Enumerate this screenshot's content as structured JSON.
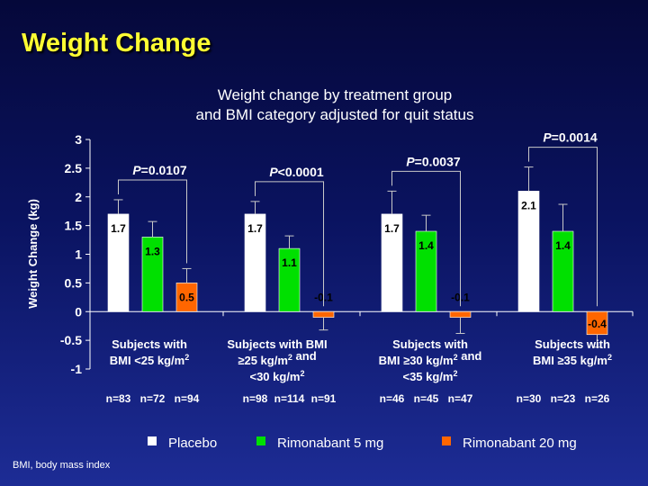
{
  "slide": {
    "title": "Weight Change",
    "footnote": "BMI, body mass index",
    "colors": {
      "background_top": "#05083a",
      "background_bottom": "#1d2c95",
      "title": "#ffff33",
      "text": "#ffffff"
    }
  },
  "chart_data": {
    "type": "bar",
    "title": [
      "Weight change by treatment group",
      "and BMI category adjusted for quit status"
    ],
    "ylabel": "Weight Change (kg)",
    "xlabel": "",
    "ylim": [
      -1,
      3
    ],
    "yticks": [
      "3",
      "2.5",
      "2",
      "1.5",
      "1",
      "0.5",
      "0",
      "-0.5",
      "-1"
    ],
    "ytick_values": [
      3,
      2.5,
      2,
      1.5,
      1,
      0.5,
      0,
      -0.5,
      -1
    ],
    "grid": false,
    "legend_position": "bottom",
    "categories": [
      {
        "lines": [
          [
            {
              "t": "Subjects with"
            }
          ],
          [
            {
              "t": "BMI <25 kg/m"
            },
            {
              "t": "2",
              "sup": true
            }
          ]
        ],
        "counts": [
          "n=83",
          "n=72",
          "n=94"
        ],
        "p": "=0.0107"
      },
      {
        "lines": [
          [
            {
              "t": "Subjects with BMI"
            }
          ],
          [
            {
              "t": "≥25 kg/m"
            },
            {
              "t": "2",
              "sup": true
            },
            {
              "t": " and"
            }
          ],
          [
            {
              "t": "<30 kg/m"
            },
            {
              "t": "2",
              "sup": true
            }
          ]
        ],
        "counts": [
          "n=98",
          "n=114",
          "n=91"
        ],
        "p": "<0.0001"
      },
      {
        "lines": [
          [
            {
              "t": "Subjects with"
            }
          ],
          [
            {
              "t": "BMI ≥30 kg/m"
            },
            {
              "t": "2",
              "sup": true
            },
            {
              "t": " and"
            }
          ],
          [
            {
              "t": "<35 kg/m"
            },
            {
              "t": "2",
              "sup": true
            }
          ]
        ],
        "counts": [
          "n=46",
          "n=45",
          "n=47"
        ],
        "p": "=0.0037"
      },
      {
        "lines": [
          [
            {
              "t": "Subjects with"
            }
          ],
          [
            {
              "t": "BMI ≥35 kg/m"
            },
            {
              "t": "2",
              "sup": true
            }
          ]
        ],
        "counts": [
          "n=30",
          "n=23",
          "n=26"
        ],
        "p": "=0.0014"
      }
    ],
    "p_prefix": "P",
    "series": [
      {
        "name": "Placebo",
        "color": "#ffffff",
        "values": [
          1.7,
          1.7,
          1.7,
          2.1
        ],
        "labels": [
          "1.7",
          "1.7",
          "1.7",
          "2.1"
        ],
        "error_upper": [
          1.95,
          1.92,
          2.1,
          2.52
        ]
      },
      {
        "name": "Rimonabant 5 mg",
        "color": "#00e000",
        "values": [
          1.3,
          1.1,
          1.4,
          1.4
        ],
        "labels": [
          "1.3",
          "1.1",
          "1.4",
          "1.4"
        ],
        "error_upper": [
          1.57,
          1.32,
          1.68,
          1.87
        ]
      },
      {
        "name": "Rimonabant 20 mg",
        "color": "#ff6600",
        "values": [
          0.5,
          -0.1,
          -0.1,
          -0.4
        ],
        "labels": [
          "0.5",
          "-0.1",
          "-0.1",
          "-0.4"
        ],
        "error_upper": [
          0.75,
          -0.32,
          -0.38,
          -0.62
        ]
      }
    ]
  }
}
